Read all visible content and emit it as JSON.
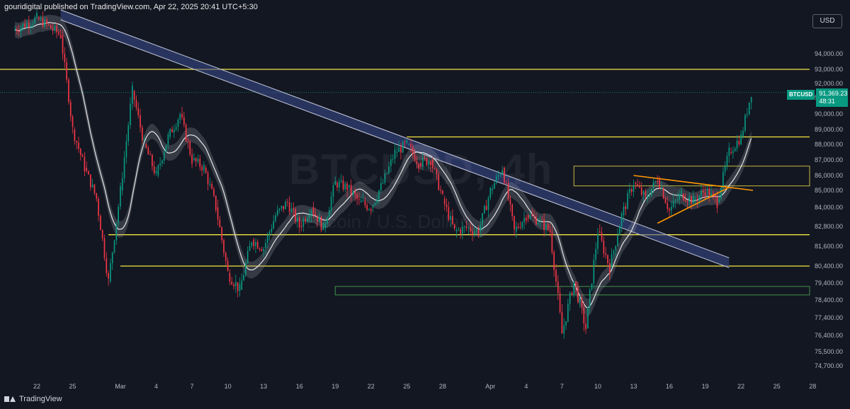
{
  "header": {
    "published_by": "gouridigital published on TradingView.com, Apr 22, 2025 20:41 UTC+5:30"
  },
  "currency_button": "USD",
  "watermark": {
    "symbol": "BTCUSD",
    "interval": "4h",
    "description": "Bitcoin / U.S. Dollar"
  },
  "footer": {
    "brand": "TradingView"
  },
  "price_label": {
    "symbol": "BTCUSD",
    "price": "91,369.23",
    "countdown": "48:31"
  },
  "colors": {
    "background": "#131722",
    "up": "#089981",
    "down": "#f23645",
    "level": "#f5e642",
    "zone_green": "#4caf50",
    "trendline": "#ff9800",
    "channel": "#3d4d8f"
  },
  "chart_data": {
    "type": "candlestick",
    "title": "BTCUSD",
    "timeframe": "4h",
    "x_tick_labels": [
      "22",
      "25",
      "Mar",
      "4",
      "7",
      "10",
      "13",
      "16",
      "19",
      "22",
      "25",
      "28",
      "Apr",
      "4",
      "7",
      "10",
      "13",
      "16",
      "19",
      "22",
      "25",
      "28"
    ],
    "y_tick_labels": [
      "94,000.00",
      "93,000.00",
      "92,000.00",
      "91,000.00",
      "90,000.00",
      "89,000.00",
      "88,000.00",
      "87,000.00",
      "86,000.00",
      "85,000.00",
      "84,000.00",
      "82,800.00",
      "81,600.00",
      "80,400.00",
      "79,400.00",
      "78,400.00",
      "77,400.00",
      "76,400.00",
      "75,500.00",
      "74,700.00"
    ],
    "ylim": [
      74000,
      96000
    ],
    "last_price": 91369.23,
    "price_path": [
      {
        "date": "Feb 20",
        "price": 95500
      },
      {
        "date": "Feb 22",
        "price": 96300
      },
      {
        "date": "Feb 24",
        "price": 95200
      },
      {
        "date": "Feb 25",
        "price": 89000
      },
      {
        "date": "Feb 26",
        "price": 86500
      },
      {
        "date": "Feb 27",
        "price": 84500
      },
      {
        "date": "Feb 28",
        "price": 79500
      },
      {
        "date": "Mar 1",
        "price": 85000
      },
      {
        "date": "Mar 2",
        "price": 91500
      },
      {
        "date": "Mar 3",
        "price": 88000
      },
      {
        "date": "Mar 4",
        "price": 86000
      },
      {
        "date": "Mar 5",
        "price": 88500
      },
      {
        "date": "Mar 6",
        "price": 90000
      },
      {
        "date": "Mar 7",
        "price": 87000
      },
      {
        "date": "Mar 8",
        "price": 86500
      },
      {
        "date": "Mar 9",
        "price": 84000
      },
      {
        "date": "Mar 10",
        "price": 80000
      },
      {
        "date": "Mar 11",
        "price": 79000
      },
      {
        "date": "Mar 12",
        "price": 82000
      },
      {
        "date": "Mar 13",
        "price": 81500
      },
      {
        "date": "Mar 14",
        "price": 83500
      },
      {
        "date": "Mar 15",
        "price": 84300
      },
      {
        "date": "Mar 16",
        "price": 82800
      },
      {
        "date": "Mar 17",
        "price": 84000
      },
      {
        "date": "Mar 18",
        "price": 82700
      },
      {
        "date": "Mar 19",
        "price": 85500
      },
      {
        "date": "Mar 20",
        "price": 85200
      },
      {
        "date": "Mar 21",
        "price": 84300
      },
      {
        "date": "Mar 22",
        "price": 84000
      },
      {
        "date": "Mar 23",
        "price": 85500
      },
      {
        "date": "Mar 24",
        "price": 87500
      },
      {
        "date": "Mar 25",
        "price": 88000
      },
      {
        "date": "Mar 26",
        "price": 86800
      },
      {
        "date": "Mar 27",
        "price": 87000
      },
      {
        "date": "Mar 28",
        "price": 84500
      },
      {
        "date": "Mar 29",
        "price": 82500
      },
      {
        "date": "Mar 30",
        "price": 82700
      },
      {
        "date": "Mar 31",
        "price": 82500
      },
      {
        "date": "Apr 1",
        "price": 85000
      },
      {
        "date": "Apr 2",
        "price": 86500
      },
      {
        "date": "Apr 3",
        "price": 82500
      },
      {
        "date": "Apr 4",
        "price": 83500
      },
      {
        "date": "Apr 5",
        "price": 83200
      },
      {
        "date": "Apr 6",
        "price": 82500
      },
      {
        "date": "Apr 7",
        "price": 76500
      },
      {
        "date": "Apr 8",
        "price": 79500
      },
      {
        "date": "Apr 9",
        "price": 76800
      },
      {
        "date": "Apr 10",
        "price": 82500
      },
      {
        "date": "Apr 11",
        "price": 80300
      },
      {
        "date": "Apr 12",
        "price": 83500
      },
      {
        "date": "Apr 13",
        "price": 85500
      },
      {
        "date": "Apr 14",
        "price": 84500
      },
      {
        "date": "Apr 15",
        "price": 85800
      },
      {
        "date": "Apr 16",
        "price": 83800
      },
      {
        "date": "Apr 17",
        "price": 84800
      },
      {
        "date": "Apr 18",
        "price": 84400
      },
      {
        "date": "Apr 19",
        "price": 85000
      },
      {
        "date": "Apr 20",
        "price": 84300
      },
      {
        "date": "Apr 21",
        "price": 87500
      },
      {
        "date": "Apr 22",
        "price": 88500
      },
      {
        "date": "Apr 22 20:41",
        "price": 91369
      }
    ],
    "horizontal_levels": [
      93000,
      88500,
      82300,
      80400
    ],
    "zones": [
      {
        "name": "resistance-zone",
        "color": "yellow",
        "from_date": "Apr 8",
        "to_date": "Apr 28",
        "low": 85300,
        "high": 86600
      },
      {
        "name": "support-zone",
        "color": "green",
        "from_date": "Mar 19",
        "to_date": "Apr 28",
        "low": 78700,
        "high": 79200
      }
    ],
    "descending_channel": {
      "start": {
        "date": "Feb 24",
        "price": 96500
      },
      "end": {
        "date": "Apr 21",
        "price": 80600
      }
    },
    "triangle": {
      "upper": [
        {
          "date": "Apr 13",
          "price": 86000
        },
        {
          "date": "Apr 23",
          "price": 85000
        }
      ],
      "lower": [
        {
          "date": "Apr 15",
          "price": 83000
        },
        {
          "date": "Apr 21",
          "price": 85200
        }
      ]
    },
    "grid": false
  }
}
